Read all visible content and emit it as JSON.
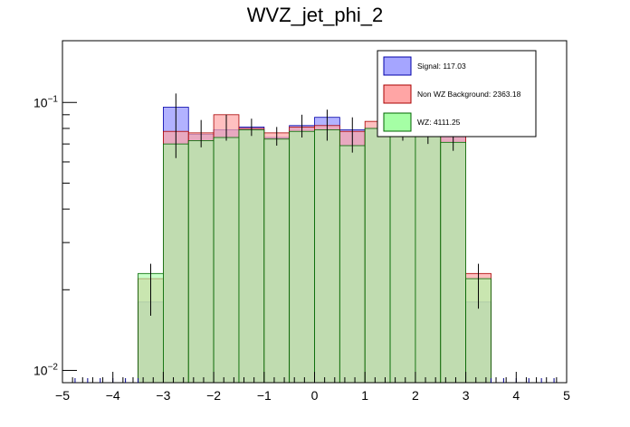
{
  "chart_data": {
    "type": "bar",
    "title": "WVZ_jet_phi_2",
    "xlabel": "",
    "ylabel": "",
    "x_range": [
      -5,
      5
    ],
    "y_scale": "log",
    "ylim": [
      0.009,
      0.17
    ],
    "x_ticks": [
      "−5",
      "−4",
      "−3",
      "−2",
      "−1",
      "0",
      "1",
      "2",
      "3",
      "4",
      "5"
    ],
    "x_tick_values": [
      -5,
      -4,
      -3,
      -2,
      -1,
      0,
      1,
      2,
      3,
      4,
      5
    ],
    "y_ticks": [
      {
        "value": 0.1,
        "base": "10",
        "exp": "−1"
      },
      {
        "value": 0.01,
        "base": "10",
        "exp": "−2"
      }
    ],
    "bin_edges": [
      -3.5,
      -3.0,
      -2.5,
      -2.0,
      -1.5,
      -1.0,
      -0.5,
      0.0,
      0.5,
      1.0,
      1.5,
      2.0,
      2.5,
      3.0,
      3.5
    ],
    "series": [
      {
        "name": "Signal: 117.03",
        "color": "#a5a5ff",
        "edge": "#0000aa",
        "values": [
          0.018,
          0.096,
          0.076,
          0.079,
          0.081,
          0.074,
          0.082,
          0.088,
          0.079,
          0.08,
          0.08,
          0.079,
          0.078,
          0.018
        ]
      },
      {
        "name": "Non WZ Background: 2363.18",
        "color": "#ffa5a5",
        "edge": "#aa0000",
        "values": [
          0.022,
          0.078,
          0.077,
          0.09,
          0.08,
          0.077,
          0.081,
          0.082,
          0.078,
          0.085,
          0.081,
          0.078,
          0.08,
          0.023
        ]
      },
      {
        "name": "WZ: 4111.25",
        "color": "#a5ffa5",
        "edge": "#006600",
        "values": [
          0.023,
          0.07,
          0.072,
          0.074,
          0.079,
          0.073,
          0.078,
          0.079,
          0.069,
          0.08,
          0.079,
          0.077,
          0.071,
          0.022
        ]
      }
    ],
    "error_bars": [
      {
        "x": -3.25,
        "lo": 0.016,
        "hi": 0.025
      },
      {
        "x": -2.75,
        "lo": 0.062,
        "hi": 0.108
      },
      {
        "x": -2.25,
        "lo": 0.068,
        "hi": 0.086
      },
      {
        "x": -1.75,
        "lo": 0.072,
        "hi": 0.09
      },
      {
        "x": -1.25,
        "lo": 0.075,
        "hi": 0.087
      },
      {
        "x": -0.75,
        "lo": 0.069,
        "hi": 0.081
      },
      {
        "x": -0.25,
        "lo": 0.074,
        "hi": 0.09
      },
      {
        "x": 0.25,
        "lo": 0.072,
        "hi": 0.094
      },
      {
        "x": 0.75,
        "lo": 0.065,
        "hi": 0.088
      },
      {
        "x": 1.25,
        "lo": 0.075,
        "hi": 0.088
      },
      {
        "x": 1.75,
        "lo": 0.072,
        "hi": 0.09
      },
      {
        "x": 2.25,
        "lo": 0.07,
        "hi": 0.088
      },
      {
        "x": 2.75,
        "lo": 0.066,
        "hi": 0.087
      },
      {
        "x": 3.25,
        "lo": 0.017,
        "hi": 0.025
      }
    ],
    "legend_position": "top-right",
    "grid": false
  }
}
